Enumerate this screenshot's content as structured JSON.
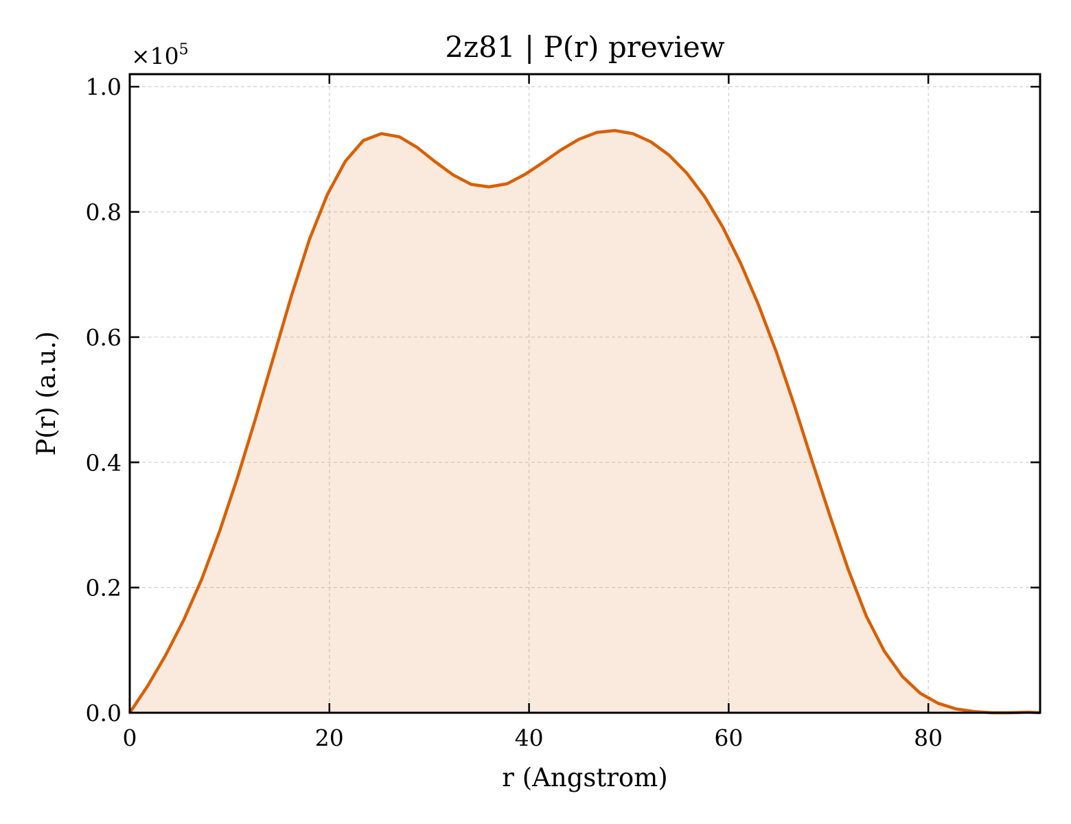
{
  "chart_data": {
    "type": "area",
    "title": "2z81 | P(r) preview",
    "xlabel": "r (Angstrom)",
    "ylabel": "P(r) (a.u.)",
    "y_multiplier_base": "×10",
    "y_multiplier_exp": "5",
    "xlim": [
      0,
      91.2
    ],
    "ylim": [
      0,
      1.02
    ],
    "x_ticks": [
      0,
      20,
      40,
      60,
      80
    ],
    "x_tick_labels": [
      "0",
      "20",
      "40",
      "60",
      "80"
    ],
    "y_ticks": [
      0,
      0.2,
      0.4,
      0.6,
      0.8,
      1.0
    ],
    "y_tick_labels": [
      "0.0",
      "0.2",
      "0.4",
      "0.6",
      "0.8",
      "1.0"
    ],
    "grid": true,
    "legend": "none",
    "series": [
      {
        "color": "#d95f02",
        "fill_color": "#d95f02",
        "fill_opacity": 0.13,
        "x": [
          0,
          1.8,
          3.6,
          5.4,
          7.2,
          9.0,
          10.8,
          12.6,
          14.4,
          16.2,
          18.0,
          19.8,
          21.6,
          23.4,
          25.2,
          27.0,
          28.8,
          30.6,
          32.4,
          34.2,
          36.0,
          37.8,
          39.6,
          41.4,
          43.2,
          45.0,
          46.8,
          48.6,
          50.4,
          52.2,
          54.0,
          55.8,
          57.6,
          59.4,
          61.2,
          63.0,
          64.8,
          66.6,
          68.4,
          70.2,
          72.0,
          73.8,
          75.6,
          77.4,
          79.2,
          81.0,
          82.8,
          84.6,
          86.4,
          88.2,
          90.0,
          91.2
        ],
        "y": [
          0.0,
          0.043,
          0.092,
          0.148,
          0.213,
          0.29,
          0.376,
          0.47,
          0.568,
          0.666,
          0.756,
          0.828,
          0.881,
          0.914,
          0.925,
          0.92,
          0.903,
          0.88,
          0.859,
          0.844,
          0.84,
          0.845,
          0.86,
          0.879,
          0.899,
          0.916,
          0.927,
          0.93,
          0.925,
          0.912,
          0.891,
          0.862,
          0.824,
          0.776,
          0.718,
          0.651,
          0.575,
          0.49,
          0.4,
          0.312,
          0.228,
          0.154,
          0.098,
          0.058,
          0.031,
          0.015,
          0.006,
          0.002,
          0.0,
          0.0,
          0.001,
          0.0
        ]
      }
    ]
  }
}
